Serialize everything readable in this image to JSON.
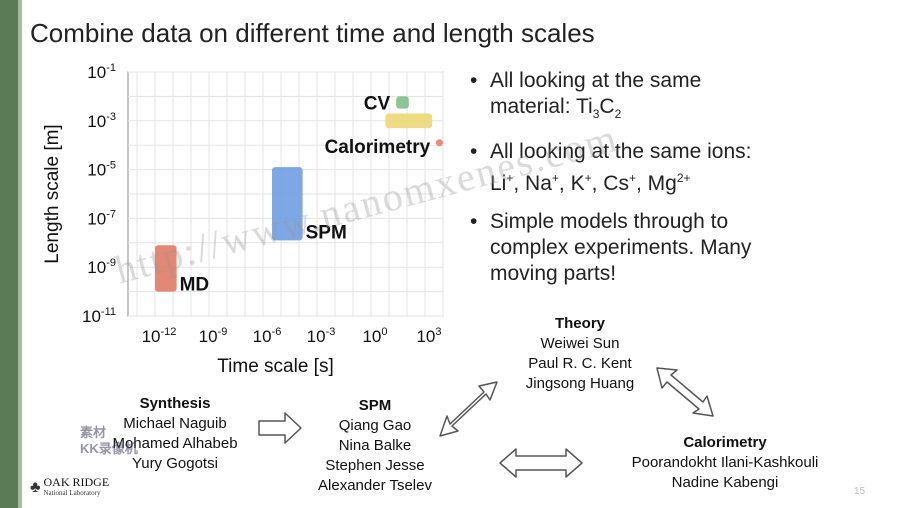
{
  "slide": {
    "title": "Combine data on different time and length scales",
    "page_number": "15",
    "logo_name": "OAK RIDGE",
    "logo_sub": "National Laboratory",
    "watermark": "http://www.nanomxenes.com",
    "cn_watermark_line1": "素材",
    "cn_watermark_line2": "KK录像机"
  },
  "chart_data": {
    "type": "scatter",
    "xlabel": "Time scale [s]",
    "ylabel": "Length scale [m]",
    "x_scale": "log",
    "y_scale": "log",
    "xlim_exp": [
      -13.5,
      4
    ],
    "ylim_exp": [
      -11,
      -1
    ],
    "x_ticks_exp": [
      -12,
      -9,
      -6,
      -3,
      0,
      3
    ],
    "y_ticks_exp": [
      -1,
      -3,
      -5,
      -7,
      -9,
      -11
    ],
    "grid": true,
    "regions": [
      {
        "label": "MD",
        "color": "#e07a68",
        "x_exp": [
          -12,
          -10.8
        ],
        "y_exp": [
          -10,
          -8.1
        ]
      },
      {
        "label": "SPM",
        "color": "#6f9ee0",
        "x_exp": [
          -5.5,
          -3.8
        ],
        "y_exp": [
          -7.9,
          -4.9
        ]
      },
      {
        "label": "CV",
        "color": "#7fbf8a",
        "x_exp": [
          1.4,
          2.1
        ],
        "y_exp": [
          -2.5,
          -2
        ]
      },
      {
        "label": "Calorimetry",
        "color": "#ecd776",
        "x_exp": [
          0.8,
          3.4
        ],
        "y_exp": [
          -3.3,
          -2.7
        ]
      }
    ],
    "marker": {
      "color": "#f08a80",
      "x_exp": 3.8,
      "y_exp": -3.9
    }
  },
  "bullets": [
    {
      "text": "All looking at the same material: Ti",
      "sub1": "3",
      "mid": "C",
      "sub2": "2"
    },
    {
      "text": "All looking at the same ions: Li",
      "ions": [
        "+",
        ", Na",
        "+",
        ", K",
        "+",
        ", Cs",
        "+",
        ", Mg",
        "2+"
      ]
    },
    {
      "text": "Simple models through to complex experiments. Many moving parts!"
    }
  ],
  "groups": {
    "synthesis": {
      "head": "Synthesis",
      "members": [
        "Michael Naguib",
        "Mohamed Alhabeb",
        "Yury Gogotsi"
      ]
    },
    "spm": {
      "head": "SPM",
      "members": [
        "Qiang Gao",
        "Nina Balke",
        "Stephen Jesse",
        "Alexander Tselev"
      ]
    },
    "theory": {
      "head": "Theory",
      "members": [
        "Weiwei Sun",
        "Paul R. C. Kent",
        "Jingsong Huang"
      ]
    },
    "calorimetry": {
      "head": "Calorimetry",
      "members": [
        "Poorandokht Ilani-Kashkouli",
        "Nadine Kabengi"
      ]
    }
  }
}
